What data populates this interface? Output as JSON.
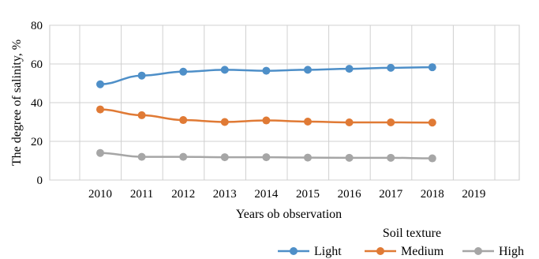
{
  "chart_data": {
    "type": "line",
    "ylabel": "The degree of salinity, %",
    "xlabel": "Years ob observation",
    "x": [
      2010,
      2011,
      2012,
      2013,
      2014,
      2015,
      2016,
      2017,
      2018
    ],
    "x_ticks": [
      "2010",
      "2011",
      "2012",
      "2013",
      "2014",
      "2015",
      "2016",
      "2017",
      "2018",
      "2019"
    ],
    "y_ticks": [
      "0",
      "20",
      "40",
      "60",
      "80"
    ],
    "ylim": [
      0,
      80
    ],
    "grid": true,
    "legend": {
      "title": "Soil texture",
      "placement": "bottom-right"
    },
    "series": [
      {
        "name": "Light",
        "color": "#4e8fc8",
        "values": [
          49.5,
          54,
          56,
          57,
          56.5,
          57,
          57.5,
          58,
          58.3
        ]
      },
      {
        "name": "Medium",
        "color": "#e07a35",
        "values": [
          36.5,
          33.5,
          31,
          30,
          30.8,
          30.2,
          29.8,
          29.8,
          29.7
        ]
      },
      {
        "name": "High",
        "color": "#a6a6a6",
        "values": [
          14,
          12,
          12,
          11.8,
          11.8,
          11.6,
          11.5,
          11.5,
          11.2
        ]
      }
    ]
  }
}
